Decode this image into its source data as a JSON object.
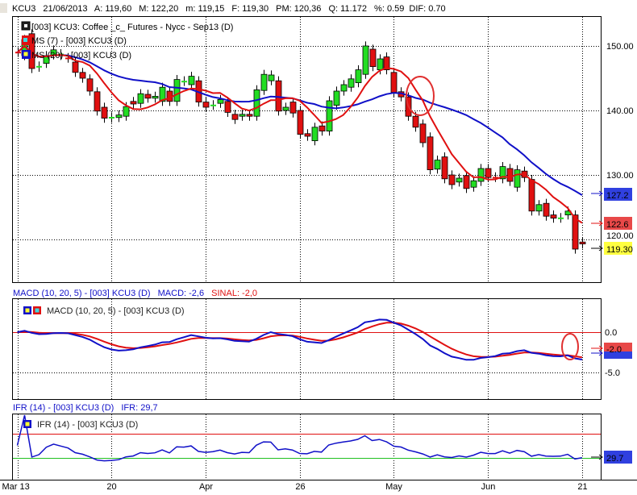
{
  "header": {
    "symbol": "KCU3",
    "date": "21/06/2013",
    "open": "A: 119,60",
    "high": "M: 122,20",
    "low": "m: 119,15",
    "close": "F: 119,30",
    "avg": "PM: 120,36",
    "qty": "Q: 11.172",
    "pct": "%: 0.59",
    "dif": "DIF: 0.70"
  },
  "price_panel": {
    "legend": [
      "[003] KCU3: Coffee _c_ Futures - Nycc - Sep13      (D)",
      "MS (7)  - [003] KCU3 (D)",
      "MS (20)  - [003] KCU3 (D)"
    ],
    "y_ticks": [
      "150.00",
      "140.00",
      "130.00",
      "120.00"
    ],
    "y_tick_values": [
      150,
      140,
      130,
      120
    ],
    "markers": {
      "ma20": "127.2",
      "ma7": "122.6",
      "last": "119.30"
    }
  },
  "macd_panel": {
    "title": "MACD (10, 20, 5)  - [003] KCU3 (D)",
    "macd_value": "MACD: -2,6",
    "signal_value": "SINAL: -2,0",
    "legend": "MACD (10, 20, 5)  - [003] KCU3 (D)",
    "y_ticks": [
      "0.0",
      "-5.0"
    ],
    "y_tick_values": [
      0,
      -5
    ],
    "marker": "-2.0"
  },
  "ifr_panel": {
    "title": "IFR (14)  - [003] KCU3 (D)",
    "ifr_value": "IFR: 29,7",
    "legend": "IFR (14)  - [003] KCU3 (D)",
    "marker": "29.7",
    "levels": [
      70,
      30
    ]
  },
  "x_axis": {
    "labels": [
      "Mar 13",
      "20",
      "Apr",
      "26",
      "May",
      "Jun",
      "21"
    ],
    "label_index": [
      0,
      13,
      26,
      39,
      52,
      65,
      78
    ]
  },
  "colors": {
    "up": "#22dd22",
    "down": "#e01010",
    "ma7": "#e01010",
    "ma20": "#1010c8",
    "macd": "#1010c8",
    "signal": "#e01010"
  },
  "chart_data": {
    "type": "candlestick",
    "title": "[003] KCU3: Coffee _c_ Futures - Nycc - Sep13 (D)",
    "ylim": [
      110,
      154
    ],
    "candles_ohlc_oc": [
      [
        149.1,
        149.0
      ],
      [
        148.5,
        151.0
      ],
      [
        151.9,
        146.5
      ],
      [
        146.7,
        146.9
      ],
      [
        147.3,
        148.5
      ],
      [
        148.6,
        149.4
      ],
      [
        148.6,
        148.8
      ],
      [
        148.2,
        148.1
      ],
      [
        147.5,
        145.9
      ],
      [
        145.9,
        145.0
      ],
      [
        144.9,
        143.0
      ],
      [
        142.9,
        139.9
      ],
      [
        140.5,
        138.8
      ],
      [
        138.8,
        139.0
      ],
      [
        138.9,
        139.3
      ],
      [
        139.1,
        140.6
      ],
      [
        141.4,
        141.0
      ],
      [
        141.1,
        142.6
      ],
      [
        142.5,
        141.9
      ],
      [
        141.9,
        142.2
      ],
      [
        141.4,
        143.6
      ],
      [
        143.0,
        141.4
      ],
      [
        141.4,
        144.8
      ],
      [
        144.5,
        144.6
      ],
      [
        144.0,
        145.3
      ],
      [
        144.6,
        141.3
      ],
      [
        141.3,
        140.5
      ],
      [
        140.8,
        140.9
      ],
      [
        141.1,
        141.7
      ],
      [
        141.4,
        139.7
      ],
      [
        139.4,
        138.6
      ],
      [
        139.1,
        139.4
      ],
      [
        139.4,
        139.1
      ],
      [
        139.1,
        143.2
      ],
      [
        143.1,
        145.6
      ],
      [
        144.6,
        145.5
      ],
      [
        144.6,
        139.9
      ],
      [
        140.0,
        140.5
      ],
      [
        141.3,
        139.6
      ],
      [
        140.0,
        136.3
      ],
      [
        136.4,
        136.0
      ],
      [
        135.3,
        137.4
      ],
      [
        137.6,
        136.8
      ],
      [
        136.8,
        141.5
      ],
      [
        140.8,
        143.0
      ],
      [
        143.0,
        144.0
      ],
      [
        143.6,
        144.9
      ],
      [
        144.3,
        146.3
      ],
      [
        145.6,
        150.0
      ],
      [
        149.5,
        146.8
      ],
      [
        146.3,
        148.0
      ],
      [
        148.3,
        146.3
      ],
      [
        145.9,
        142.8
      ],
      [
        142.9,
        142.1
      ],
      [
        142.1,
        139.1
      ],
      [
        139.1,
        137.4
      ],
      [
        137.9,
        135.0
      ],
      [
        135.9,
        130.8
      ],
      [
        130.9,
        132.3
      ],
      [
        132.8,
        129.4
      ],
      [
        130.0,
        128.5
      ],
      [
        128.9,
        129.5
      ],
      [
        129.9,
        127.9
      ],
      [
        128.1,
        129.1
      ],
      [
        129.0,
        131.0
      ],
      [
        131.0,
        129.6
      ],
      [
        129.7,
        129.6
      ],
      [
        129.4,
        131.3
      ],
      [
        131.0,
        129.0
      ],
      [
        128.1,
        130.8
      ],
      [
        130.6,
        129.6
      ],
      [
        129.3,
        124.4
      ],
      [
        124.4,
        125.4
      ],
      [
        125.6,
        123.6
      ],
      [
        123.8,
        123.3
      ],
      [
        123.3,
        123.4
      ],
      [
        123.8,
        124.4
      ],
      [
        123.8,
        118.5
      ],
      [
        119.6,
        119.3
      ]
    ],
    "ma_periods": [
      7,
      20
    ],
    "macd_params": [
      10,
      20,
      5
    ],
    "ifr_period": 14
  }
}
